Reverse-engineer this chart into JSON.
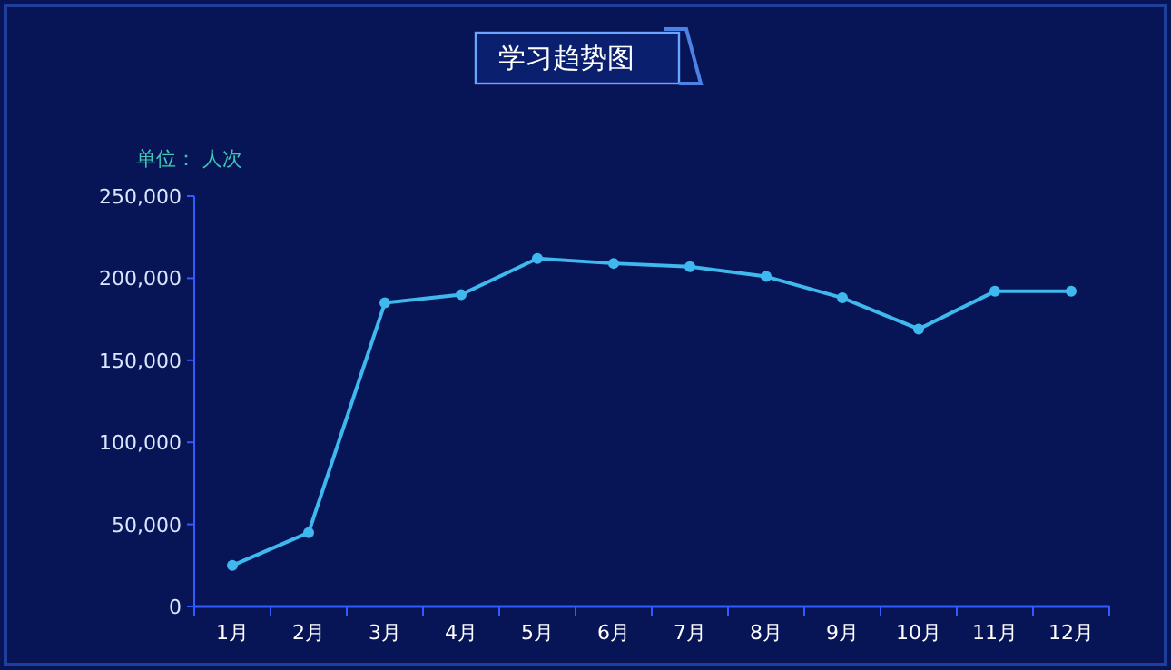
{
  "chart_data": {
    "type": "line",
    "title": "学习趋势图",
    "ylabel": "单位： 人次",
    "categories": [
      "1月",
      "2月",
      "3月",
      "4月",
      "5月",
      "6月",
      "7月",
      "8月",
      "9月",
      "10月",
      "11月",
      "12月"
    ],
    "series": [
      {
        "color": "#3fb8ee",
        "values": [
          25000,
          45000,
          185000,
          190000,
          212000,
          209000,
          207000,
          201000,
          188000,
          169000,
          192000,
          192000
        ]
      }
    ],
    "ylim": [
      0,
      250000
    ],
    "yticks": [
      {
        "value": 0,
        "label": "0"
      },
      {
        "value": 50000,
        "label": "50,000"
      },
      {
        "value": 100000,
        "label": "100,000"
      },
      {
        "value": 150000,
        "label": "150,000"
      },
      {
        "value": 200000,
        "label": "200,000"
      },
      {
        "value": 250000,
        "label": "250,000"
      }
    ],
    "marker": "circle",
    "line_style": "solid",
    "grid": false
  }
}
